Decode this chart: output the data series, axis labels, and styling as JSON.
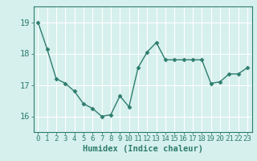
{
  "x": [
    0,
    1,
    2,
    3,
    4,
    5,
    6,
    7,
    8,
    9,
    10,
    11,
    12,
    13,
    14,
    15,
    16,
    17,
    18,
    19,
    20,
    21,
    22,
    23
  ],
  "y": [
    19.0,
    18.15,
    17.2,
    17.05,
    16.8,
    16.4,
    16.25,
    16.0,
    16.05,
    16.65,
    16.3,
    17.55,
    18.05,
    18.35,
    17.8,
    17.8,
    17.8,
    17.8,
    17.8,
    17.05,
    17.1,
    17.35,
    17.35,
    17.55
  ],
  "xlabel": "Humidex (Indice chaleur)",
  "line_color": "#2e7d6e",
  "marker_color": "#2e7d6e",
  "bg_color": "#d6f0ed",
  "grid_color": "#ffffff",
  "axis_color": "#2e7d6e",
  "tick_label_color": "#2e7d6e",
  "xlabel_color": "#2e7d6e",
  "ylim": [
    15.5,
    19.5
  ],
  "yticks": [
    16,
    17,
    18,
    19
  ],
  "xticks": [
    0,
    1,
    2,
    3,
    4,
    5,
    6,
    7,
    8,
    9,
    10,
    11,
    12,
    13,
    14,
    15,
    16,
    17,
    18,
    19,
    20,
    21,
    22,
    23
  ],
  "xlim": [
    -0.5,
    23.5
  ],
  "tick_fontsize": 6.5,
  "ylabel_fontsize": 7.5,
  "xlabel_fontsize": 7.5,
  "ytick_fontsize": 7.5
}
